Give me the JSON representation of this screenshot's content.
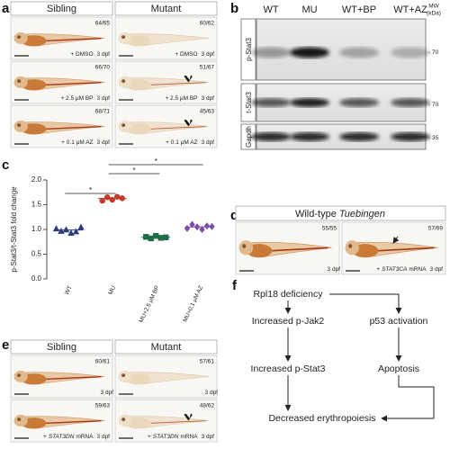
{
  "panel_a": {
    "letter": "a",
    "headers": [
      "Sibling",
      "Mutant"
    ],
    "rows": [
      {
        "counts": [
          "64/65",
          "60/62"
        ],
        "treatment": "+ DMSO",
        "stage": "3 dpf"
      },
      {
        "counts": [
          "66/70",
          "51/67"
        ],
        "treatment": "+ 2.5 μM BP",
        "stage": "3 dpf"
      },
      {
        "counts": [
          "68/71",
          "45/63"
        ],
        "treatment": "+ 0.1 μM AZ",
        "stage": "3 dpf"
      }
    ]
  },
  "panel_b": {
    "letter": "b",
    "columns": [
      "WT",
      "MU",
      "WT+BP",
      "WT+AZ"
    ],
    "mw_title": [
      "MW",
      "(kDa)"
    ],
    "blots": [
      {
        "label": "p-Stat3",
        "marker": "- 70"
      },
      {
        "label": "t-Stat3",
        "marker": "- 70"
      },
      {
        "label": "Gapdh",
        "marker": "- 35"
      }
    ]
  },
  "chart_data": {
    "type": "dot",
    "letter": "c",
    "y_label": "p-Stat3/t-Stat3 fold change",
    "categories": [
      "WT",
      "MU",
      "MU+2.5 μM BP",
      "MU+0.1 μM AZ"
    ],
    "values": [
      [
        1.02,
        0.97,
        1.0,
        0.93,
        0.96,
        1.05
      ],
      [
        1.58,
        1.65,
        1.6,
        1.66,
        1.63
      ],
      [
        0.85,
        0.82,
        0.87,
        0.83,
        0.84
      ],
      [
        1.02,
        1.1,
        1.05,
        1.0,
        1.07,
        1.06
      ]
    ],
    "colors": [
      "#2c3e7a",
      "#c0392b",
      "#1e6b4a",
      "#7b4fa8"
    ],
    "markers": [
      "triangle",
      "circle",
      "square",
      "diamond"
    ],
    "ylim": [
      0,
      2.0
    ],
    "yticks": [
      {
        "value": 0,
        "label": "0.0"
      },
      0.5,
      {
        "value": 1,
        "label": "1.0"
      },
      1.5,
      {
        "value": 2,
        "label": "2.0"
      }
    ],
    "annotations": [
      "*",
      "*",
      "*"
    ]
  },
  "panel_d": {
    "letter": "d",
    "title": "Wild-type",
    "title_italic": "Tuebingen",
    "cells": [
      {
        "count": "55/55",
        "stage": "3 dpf"
      },
      {
        "count": "57/69",
        "prefix": "+",
        "gene": "STAT3CA",
        "suffix": "mRNA",
        "stage": "3 dpf"
      }
    ]
  },
  "panel_e": {
    "letter": "e",
    "headers": [
      "Sibling",
      "Mutant"
    ],
    "rows": [
      {
        "counts": [
          "60/61",
          "57/61"
        ],
        "stage": "3 dpf"
      },
      {
        "counts": [
          "59/63",
          "48/62"
        ],
        "prefix": "+",
        "gene": "STAT3DN",
        "suffix": "mRNA",
        "stage": "3 dpf"
      }
    ]
  },
  "panel_f": {
    "letter": "f",
    "nodes": [
      "Rpl18 deficiency",
      "Increased p-Jak2",
      "p53 activation",
      "Increased p-Stat3",
      "Apoptosis",
      "Decreased erythropoiesis"
    ]
  }
}
